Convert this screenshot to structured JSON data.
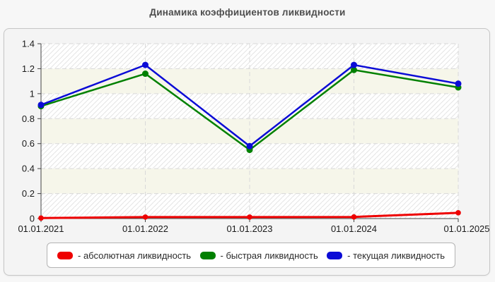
{
  "title": "Динамика коэффициентов ликвидности",
  "colors": {
    "band": "#f6f6ea",
    "hatch": "#e4e4e4",
    "grid": "#d9d9d9",
    "axis": "#444444",
    "tick_label": "#1a1a1a"
  },
  "chart_data": {
    "type": "line",
    "title": "Динамика коэффициентов ликвидности",
    "x": [
      "01.01.2021",
      "01.01.2022",
      "01.01.2023",
      "01.01.2024",
      "01.01.2025"
    ],
    "series": [
      {
        "name": "абсолютная ликвидность",
        "color": "#ee0000",
        "values": [
          0.004,
          0.012,
          0.012,
          0.013,
          0.046
        ]
      },
      {
        "name": "быстрая ликвидность",
        "color": "#008000",
        "values": [
          0.9,
          1.16,
          0.55,
          1.19,
          1.05
        ]
      },
      {
        "name": "текущая ликвидность",
        "color": "#0b0bd6",
        "values": [
          0.91,
          1.23,
          0.58,
          1.23,
          1.08
        ]
      }
    ],
    "ylim": [
      0,
      1.4
    ],
    "yticks": [
      0,
      0.2,
      0.4,
      0.6,
      0.8,
      1,
      1.2,
      1.4
    ],
    "ytick_labels": [
      "0",
      "0.2",
      "0.4",
      "0.6",
      "0.8",
      "1",
      "1.2",
      "1.4"
    ],
    "grid": true,
    "grid_style": "dashed",
    "legend_position": "bottom"
  },
  "legend": {
    "items": [
      {
        "label": "- абсолютная ликвидность"
      },
      {
        "label": "- быстрая ликвидность"
      },
      {
        "label": "- текущая ликвидность"
      }
    ]
  }
}
